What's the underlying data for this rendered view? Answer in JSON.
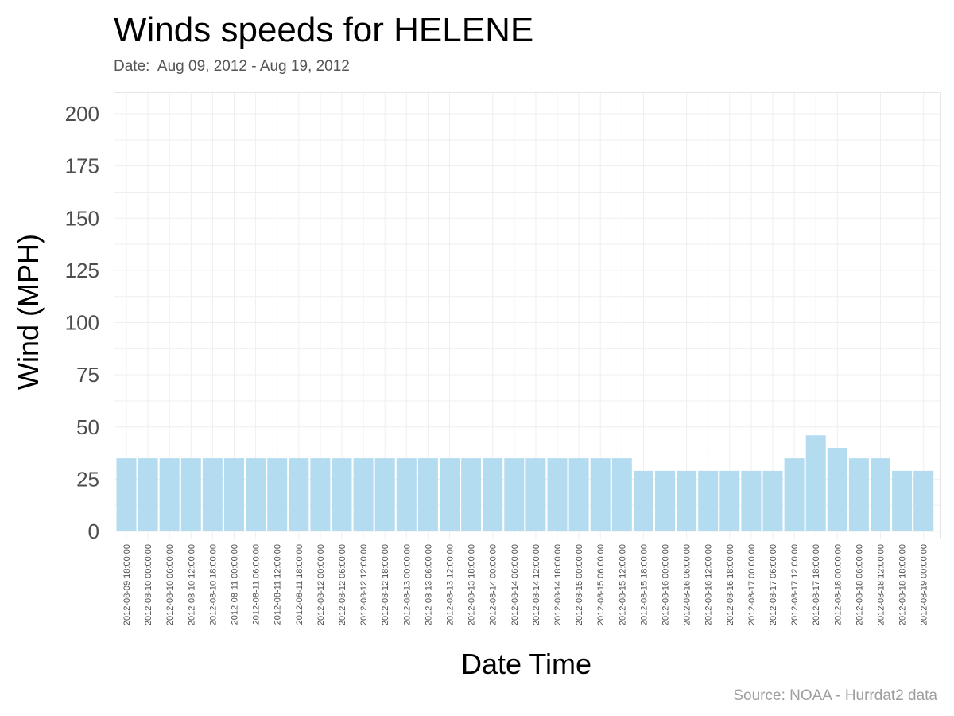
{
  "chart_data": {
    "type": "bar",
    "title": "Winds speeds for HELENE",
    "subtitle": "Date:  Aug 09, 2012 - Aug 19, 2012",
    "xlabel": "Date Time",
    "ylabel": "Wind (MPH)",
    "caption": "Source: NOAA - Hurrdat2 data",
    "ylim": [
      0,
      200
    ],
    "yticks": [
      "0",
      "25",
      "50",
      "75",
      "100",
      "125",
      "150",
      "175",
      "200"
    ],
    "grid": true,
    "bar_color": "#b3dcf1",
    "categories": [
      "2012-08-09 18:00:00",
      "2012-08-10 00:00:00",
      "2012-08-10 06:00:00",
      "2012-08-10 12:00:00",
      "2012-08-10 18:00:00",
      "2012-08-11 00:00:00",
      "2012-08-11 06:00:00",
      "2012-08-11 12:00:00",
      "2012-08-11 18:00:00",
      "2012-08-12 00:00:00",
      "2012-08-12 06:00:00",
      "2012-08-12 12:00:00",
      "2012-08-12 18:00:00",
      "2012-08-13 00:00:00",
      "2012-08-13 06:00:00",
      "2012-08-13 12:00:00",
      "2012-08-13 18:00:00",
      "2012-08-14 00:00:00",
      "2012-08-14 06:00:00",
      "2012-08-14 12:00:00",
      "2012-08-14 18:00:00",
      "2012-08-15 00:00:00",
      "2012-08-15 06:00:00",
      "2012-08-15 12:00:00",
      "2012-08-15 18:00:00",
      "2012-08-16 00:00:00",
      "2012-08-16 06:00:00",
      "2012-08-16 12:00:00",
      "2012-08-16 18:00:00",
      "2012-08-17 00:00:00",
      "2012-08-17 06:00:00",
      "2012-08-17 12:00:00",
      "2012-08-17 18:00:00",
      "2012-08-18 00:00:00",
      "2012-08-18 06:00:00",
      "2012-08-18 12:00:00",
      "2012-08-18 18:00:00",
      "2012-08-19 00:00:00"
    ],
    "values": [
      35,
      35,
      35,
      35,
      35,
      35,
      35,
      35,
      35,
      35,
      35,
      35,
      35,
      35,
      35,
      35,
      35,
      35,
      35,
      35,
      35,
      35,
      35,
      35,
      29,
      29,
      29,
      29,
      29,
      29,
      29,
      35,
      46,
      40,
      35,
      35,
      29,
      29
    ]
  }
}
